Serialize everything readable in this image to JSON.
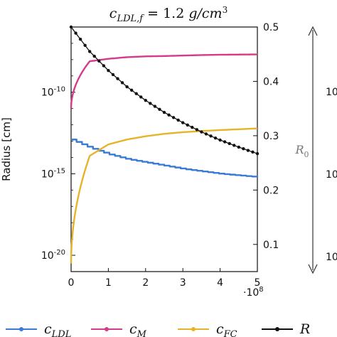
{
  "chart_data": {
    "type": "line",
    "title": "c_{LDL,f} = 1.2 g/cm^3",
    "title_parts": {
      "main": "c",
      "sub": "LDL,f",
      "eq": " = 1.2 ",
      "unit": "g/cm",
      "sup": "3"
    },
    "x": [
      0,
      0.5,
      1,
      1.5,
      2,
      2.5,
      3,
      3.5,
      4,
      4.5,
      5
    ],
    "x_multiplier": "·10^8",
    "x_multiplier_parts": {
      "base": "·10",
      "exp": "8"
    },
    "xticks": [
      "0",
      "1",
      "2",
      "3",
      "4",
      "5"
    ],
    "xlim": [
      0,
      5
    ],
    "left_axis": {
      "label": "Radius [cm]",
      "scale": "log",
      "ylim_exp": [
        -21,
        -6
      ],
      "ticks": [
        {
          "base": "10",
          "exp": "-10",
          "value_exp": -10
        },
        {
          "base": "10",
          "exp": "-15",
          "value_exp": -15
        },
        {
          "base": "10",
          "exp": "-20",
          "value_exp": -20
        }
      ]
    },
    "right_axis": {
      "label": "R_0",
      "label_parts": {
        "main": "R",
        "sub": "0"
      },
      "scale": "linear",
      "ylim": [
        0.05,
        0.5
      ],
      "ticks": [
        "0.1",
        "0.2",
        "0.3",
        "0.4",
        "0.5"
      ]
    },
    "far_right_label_fragment": "10",
    "series": [
      {
        "name": "c_LDL",
        "legend_parts": {
          "main": "c",
          "sub": "LDL"
        },
        "axis": "left",
        "color": "#3a7bd5",
        "style": "step",
        "log10_values": [
          -12.9,
          -13.4,
          -13.8,
          -14.1,
          -14.3,
          -14.5,
          -14.7,
          -14.85,
          -15.0,
          -15.1,
          -15.2
        ]
      },
      {
        "name": "c_M",
        "legend_parts": {
          "main": "c",
          "sub": "M"
        },
        "axis": "left",
        "color": "#d63a8a",
        "style": "line",
        "log10_values": [
          -11.0,
          -8.1,
          -7.95,
          -7.85,
          -7.8,
          -7.78,
          -7.75,
          -7.72,
          -7.7,
          -7.69,
          -7.68
        ]
      },
      {
        "name": "c_FC",
        "legend_parts": {
          "main": "c",
          "sub": "FC"
        },
        "axis": "left",
        "color": "#e6b42a",
        "style": "line",
        "log10_values": [
          -20.5,
          -13.9,
          -13.2,
          -12.9,
          -12.7,
          -12.55,
          -12.45,
          -12.38,
          -12.32,
          -12.27,
          -12.22
        ]
      },
      {
        "name": "R",
        "legend_parts": {
          "main": "R",
          "sub": ""
        },
        "axis": "right",
        "color": "#111111",
        "style": "line-markers",
        "values": [
          0.5,
          0.455,
          0.42,
          0.39,
          0.365,
          0.343,
          0.324,
          0.307,
          0.292,
          0.279,
          0.267
        ]
      }
    ],
    "legend_position": "bottom",
    "grid": false
  }
}
